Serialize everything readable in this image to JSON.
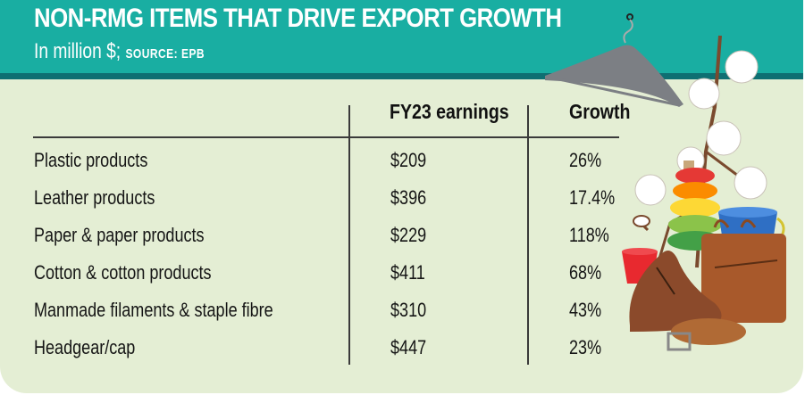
{
  "header": {
    "title": "NON-RMG ITEMS THAT DRIVE EXPORT GROWTH",
    "subtitle": "In million $;",
    "source": "SOURCE: EPB"
  },
  "table": {
    "columns": [
      "",
      "FY23 earnings",
      "Growth"
    ],
    "rows": [
      {
        "item": "Plastic products",
        "earnings": "$209",
        "growth": "26%"
      },
      {
        "item": "Leather products",
        "earnings": "$396",
        "growth": "17.4%"
      },
      {
        "item": "Paper & paper products",
        "earnings": "$229",
        "growth": "118%"
      },
      {
        "item": "Cotton & cotton products",
        "earnings": "$411",
        "growth": "68%"
      },
      {
        "item": "Manmade filaments & staple fibre",
        "earnings": "$310",
        "growth": "43%"
      },
      {
        "item": "Headgear/cap",
        "earnings": "$447",
        "growth": "23%"
      }
    ]
  },
  "illustration": {
    "icons": [
      "hanger-icon",
      "cotton-plant-icon",
      "stacking-rings-toy-icon",
      "bucket-icon",
      "briefcase-icon",
      "shoe-icon",
      "belt-icon"
    ]
  },
  "colors": {
    "header": "#19aea2",
    "header_strip": "#0e6f72",
    "background": "#e4eed4",
    "text": "#151515"
  }
}
